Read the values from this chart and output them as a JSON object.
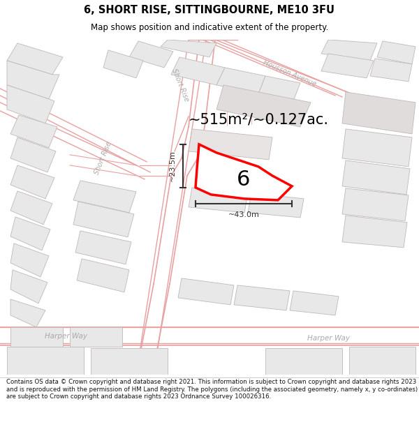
{
  "title": "6, SHORT RISE, SITTINGBOURNE, ME10 3FU",
  "subtitle": "Map shows position and indicative extent of the property.",
  "footer": "Contains OS data © Crown copyright and database right 2021. This information is subject to Crown copyright and database rights 2023 and is reproduced with the permission of HM Land Registry. The polygons (including the associated geometry, namely x, y co-ordinates) are subject to Crown copyright and database rights 2023 Ordnance Survey 100026316.",
  "area_text": "~515m²/~0.127ac.",
  "width_label": "~43.0m",
  "height_label": "~23.5m",
  "plot_number": "6",
  "map_bg": "#ffffff",
  "building_fill": "#e8e8e8",
  "building_edge": "#c0b8b8",
  "road_line": "#e8a0a0",
  "highlight_color": "#ff0000",
  "dim_color": "#333333",
  "title_color": "#000000",
  "road_label_color": "#aaaaaa",
  "plot_fill": "#ffffff"
}
